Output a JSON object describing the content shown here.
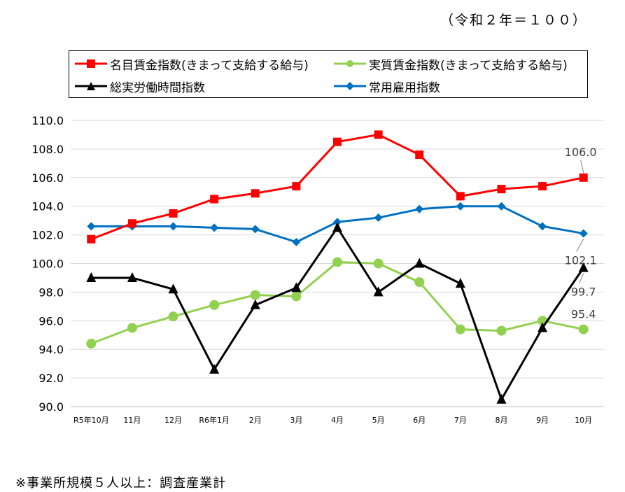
{
  "top_note": "（令和２年＝１００）",
  "foot_note": "※事業所規模５人以上：調査産業計",
  "chart_data": {
    "type": "line",
    "categories": [
      "R5年10月",
      "11月",
      "12月",
      "R6年1月",
      "2月",
      "3月",
      "4月",
      "5月",
      "6月",
      "7月",
      "8月",
      "9月",
      "10月"
    ],
    "ylim": [
      90.0,
      110.0
    ],
    "yticks": [
      "90.0",
      "92.0",
      "94.0",
      "96.0",
      "98.0",
      "100.0",
      "102.0",
      "104.0",
      "106.0",
      "108.0",
      "110.0"
    ],
    "grid": true,
    "legend_position": "top",
    "series": [
      {
        "name": "名目賃金指数(きまって支給する給与)",
        "color": "#ff0000",
        "marker": "square",
        "values": [
          101.7,
          102.8,
          103.5,
          104.5,
          104.9,
          105.4,
          108.5,
          109.0,
          107.6,
          104.7,
          105.2,
          105.4,
          106.0
        ],
        "end_label": "106.0"
      },
      {
        "name": "実質賃金指数(きまって支給する給与)",
        "color": "#92d050",
        "marker": "circle",
        "values": [
          94.4,
          95.5,
          96.3,
          97.1,
          97.8,
          97.7,
          100.1,
          100.0,
          98.7,
          95.4,
          95.3,
          96.0,
          95.4
        ],
        "end_label": "95.4"
      },
      {
        "name": "総実労働時間指数",
        "color": "#000000",
        "marker": "triangle",
        "values": [
          99.0,
          99.0,
          98.2,
          92.6,
          97.1,
          98.3,
          102.5,
          98.0,
          100.0,
          98.6,
          90.5,
          95.5,
          99.7
        ],
        "end_label": "99.7"
      },
      {
        "name": "常用雇用指数",
        "color": "#0070c0",
        "marker": "diamond",
        "values": [
          102.6,
          102.6,
          102.6,
          102.5,
          102.4,
          101.5,
          102.9,
          103.2,
          103.8,
          104.0,
          104.0,
          102.6,
          102.1
        ],
        "end_label": "102.1"
      }
    ]
  }
}
